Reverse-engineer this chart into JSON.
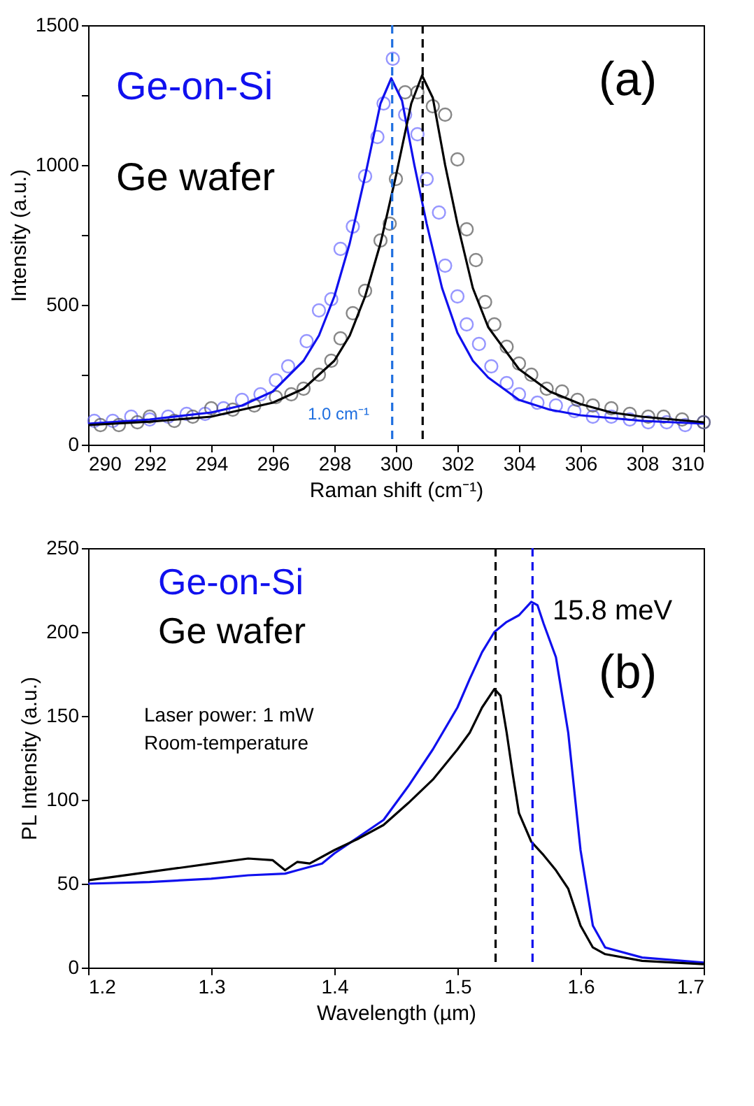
{
  "chart_data": [
    {
      "type": "scatter",
      "xlabel": "Raman shift (cm⁻¹)",
      "ylabel": "Intensity (a.u.)",
      "xlim": [
        290,
        310
      ],
      "xticks": [
        290,
        292,
        294,
        296,
        298,
        300,
        302,
        304,
        306,
        308,
        310
      ],
      "ylim": [
        0,
        1500
      ],
      "yticks": [
        0,
        {
          "value": 250,
          "label": null
        },
        500,
        {
          "value": 750,
          "label": null
        },
        1000,
        {
          "value": 1250,
          "label": null
        },
        1500
      ],
      "grid": false,
      "annotations": [
        "(a)",
        "1.0 cm⁻¹"
      ],
      "ref_lines": [
        {
          "axis": "x",
          "value": 299.88,
          "color": "#1f6fe0",
          "line_style": "dashed"
        },
        {
          "axis": "x",
          "value": 300.87,
          "color": "#000000",
          "line_style": "dashed"
        }
      ],
      "series": [
        {
          "marker": "circle",
          "color": "#6a6aff",
          "x": [
            290.2,
            290.8,
            291.4,
            292.0,
            292.6,
            293.2,
            293.8,
            294.4,
            295.0,
            295.6,
            296.1,
            296.5,
            297.1,
            297.5,
            297.9,
            298.2,
            298.6,
            299.0,
            299.4,
            299.6,
            299.9,
            300.3,
            300.7,
            301.0,
            301.4,
            301.6,
            302.0,
            302.3,
            302.7,
            303.1,
            303.6,
            304.0,
            304.6,
            305.2,
            305.8,
            306.4,
            307.0,
            307.6,
            308.2,
            308.8,
            309.4,
            310.0
          ],
          "values": [
            85,
            85,
            100,
            90,
            100,
            110,
            110,
            130,
            160,
            180,
            230,
            280,
            370,
            480,
            520,
            700,
            780,
            960,
            1100,
            1220,
            1380,
            1180,
            1110,
            950,
            830,
            640,
            530,
            430,
            360,
            280,
            220,
            180,
            150,
            140,
            120,
            100,
            100,
            90,
            80,
            80,
            70,
            80
          ]
        },
        {
          "marker": "circle",
          "color": "#555555",
          "x": [
            290.4,
            291.0,
            291.6,
            292.0,
            292.8,
            293.4,
            294.0,
            294.7,
            295.4,
            296.1,
            296.6,
            297.0,
            297.5,
            297.9,
            298.2,
            298.6,
            299.0,
            299.5,
            299.8,
            300.0,
            300.3,
            300.7,
            301.2,
            301.6,
            302.0,
            302.3,
            302.6,
            302.9,
            303.2,
            303.6,
            304.0,
            304.4,
            304.9,
            305.4,
            305.9,
            306.4,
            307.0,
            307.6,
            308.2,
            308.7,
            309.3,
            310.0
          ],
          "values": [
            70,
            70,
            80,
            100,
            85,
            100,
            130,
            125,
            140,
            170,
            180,
            200,
            250,
            300,
            380,
            470,
            550,
            730,
            790,
            950,
            1260,
            1260,
            1210,
            1180,
            1020,
            770,
            660,
            510,
            430,
            350,
            290,
            250,
            200,
            190,
            160,
            140,
            130,
            110,
            100,
            100,
            90,
            80
          ]
        },
        {
          "type": "line",
          "marker": "none",
          "name": "Ge-on-Si",
          "color": "#1010ee",
          "x": [
            290,
            292,
            294,
            295,
            296,
            297,
            297.5,
            298,
            298.5,
            299,
            299.5,
            299.85,
            300.2,
            300.6,
            301,
            301.5,
            302,
            302.5,
            303,
            304,
            305,
            306,
            308,
            310
          ],
          "values": [
            75,
            90,
            115,
            140,
            190,
            300,
            390,
            530,
            720,
            960,
            1220,
            1310,
            1230,
            1000,
            790,
            560,
            400,
            300,
            240,
            160,
            125,
            105,
            85,
            75
          ]
        },
        {
          "type": "line",
          "marker": "none",
          "name": "Ge wafer",
          "color": "#000000",
          "x": [
            290,
            292,
            294,
            296,
            297,
            298,
            298.5,
            299,
            299.5,
            300,
            300.5,
            300.85,
            301.2,
            301.6,
            302,
            302.5,
            303,
            304,
            305,
            306,
            307,
            308,
            310
          ],
          "values": [
            70,
            82,
            100,
            150,
            200,
            300,
            390,
            530,
            720,
            960,
            1220,
            1320,
            1240,
            1000,
            790,
            560,
            420,
            270,
            190,
            145,
            115,
            100,
            80
          ]
        }
      ]
    },
    {
      "type": "line",
      "xlabel": "Wavelength (µm)",
      "ylabel": "PL Intensity (a.u.)",
      "xlim": [
        1.2,
        1.7
      ],
      "xticks": [
        1.2,
        1.3,
        1.4,
        1.5,
        1.6,
        1.7
      ],
      "ylim": [
        0,
        250
      ],
      "yticks": [
        0,
        50,
        100,
        150,
        200,
        250
      ],
      "grid": false,
      "annotations": [
        "15.8 meV",
        "(b)",
        "Laser power: 1 mW",
        "Room-temperature"
      ],
      "ref_lines": [
        {
          "axis": "x",
          "value": 1.531,
          "color": "#000000",
          "line_style": "dashed"
        },
        {
          "axis": "x",
          "value": 1.561,
          "color": "#1010ee",
          "line_style": "dashed"
        }
      ],
      "series": [
        {
          "marker": "none",
          "name": "Ge-on-Si",
          "color": "#1010ee",
          "x": [
            1.2,
            1.25,
            1.3,
            1.33,
            1.36,
            1.37,
            1.39,
            1.4,
            1.42,
            1.44,
            1.46,
            1.48,
            1.5,
            1.51,
            1.52,
            1.53,
            1.54,
            1.55,
            1.56,
            1.565,
            1.57,
            1.58,
            1.59,
            1.6,
            1.61,
            1.62,
            1.65,
            1.7
          ],
          "values": [
            50,
            51,
            53,
            55,
            56,
            58,
            62,
            68,
            78,
            88,
            108,
            130,
            155,
            172,
            188,
            200,
            206,
            210,
            218,
            216,
            205,
            185,
            140,
            70,
            25,
            12,
            6,
            3
          ]
        },
        {
          "marker": "none",
          "name": "Ge wafer",
          "color": "#000000",
          "x": [
            1.2,
            1.22,
            1.25,
            1.28,
            1.3,
            1.33,
            1.35,
            1.36,
            1.37,
            1.38,
            1.4,
            1.42,
            1.44,
            1.46,
            1.48,
            1.5,
            1.51,
            1.52,
            1.53,
            1.535,
            1.54,
            1.545,
            1.55,
            1.56,
            1.57,
            1.58,
            1.59,
            1.6,
            1.61,
            1.62,
            1.65,
            1.7
          ],
          "values": [
            52,
            54,
            57,
            60,
            62,
            65,
            64,
            58,
            63,
            62,
            70,
            77,
            85,
            98,
            112,
            130,
            140,
            155,
            166,
            162,
            140,
            115,
            92,
            75,
            67,
            58,
            47,
            25,
            12,
            8,
            4,
            2
          ]
        }
      ]
    }
  ]
}
